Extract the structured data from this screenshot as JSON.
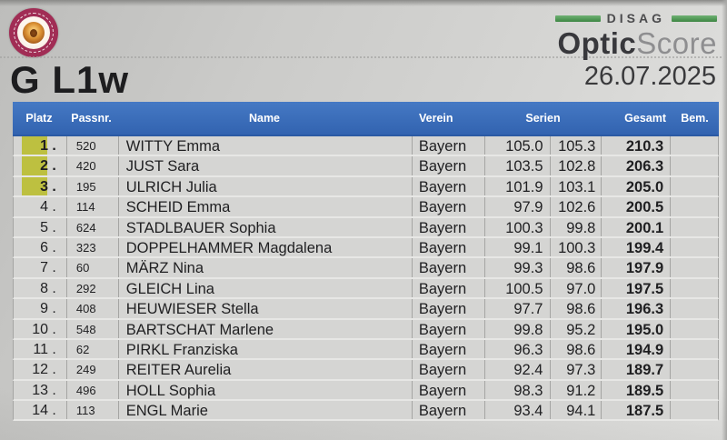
{
  "page": {
    "title": "G L1w",
    "date": "26.07.2025",
    "brand": {
      "top_word": "DISAG",
      "name_bold": "Optic",
      "name_light": "Score"
    },
    "logo": "bssb-lion-badge"
  },
  "colors": {
    "header_blue": "#3a6fbe",
    "rank_highlight": "#bdc040",
    "brand_green": "#3d8643",
    "badge_ring": "#a12d55",
    "row_bg": "#d5d5d3"
  },
  "table": {
    "headers": {
      "platz": "Platz",
      "passnr": "Passnr.",
      "name": "Name",
      "verein": "Verein",
      "serien": "Serien",
      "gesamt": "Gesamt",
      "bem": "Bem."
    },
    "rows": [
      {
        "platz": "1 .",
        "passnr": "520",
        "name": "WITTY Emma",
        "verein": "Bayern",
        "serie1": "105.0",
        "serie2": "105.3",
        "gesamt": "210.3",
        "bem": "",
        "highlight": true
      },
      {
        "platz": "2 .",
        "passnr": "420",
        "name": "JUST Sara",
        "verein": "Bayern",
        "serie1": "103.5",
        "serie2": "102.8",
        "gesamt": "206.3",
        "bem": "",
        "highlight": true
      },
      {
        "platz": "3 .",
        "passnr": "195",
        "name": "ULRICH Julia",
        "verein": "Bayern",
        "serie1": "101.9",
        "serie2": "103.1",
        "gesamt": "205.0",
        "bem": "",
        "highlight": true
      },
      {
        "platz": "4 .",
        "passnr": "114",
        "name": "SCHEID Emma",
        "verein": "Bayern",
        "serie1": "97.9",
        "serie2": "102.6",
        "gesamt": "200.5",
        "bem": "",
        "highlight": false
      },
      {
        "platz": "5 .",
        "passnr": "624",
        "name": "STADLBAUER Sophia",
        "verein": "Bayern",
        "serie1": "100.3",
        "serie2": "99.8",
        "gesamt": "200.1",
        "bem": "",
        "highlight": false
      },
      {
        "platz": "6 .",
        "passnr": "323",
        "name": "DOPPELHAMMER Magdalena",
        "verein": "Bayern",
        "serie1": "99.1",
        "serie2": "100.3",
        "gesamt": "199.4",
        "bem": "",
        "highlight": false
      },
      {
        "platz": "7 .",
        "passnr": "60",
        "name": "MÄRZ Nina",
        "verein": "Bayern",
        "serie1": "99.3",
        "serie2": "98.6",
        "gesamt": "197.9",
        "bem": "",
        "highlight": false
      },
      {
        "platz": "8 .",
        "passnr": "292",
        "name": "GLEICH Lina",
        "verein": "Bayern",
        "serie1": "100.5",
        "serie2": "97.0",
        "gesamt": "197.5",
        "bem": "",
        "highlight": false
      },
      {
        "platz": "9 .",
        "passnr": "408",
        "name": "HEUWIESER Stella",
        "verein": "Bayern",
        "serie1": "97.7",
        "serie2": "98.6",
        "gesamt": "196.3",
        "bem": "",
        "highlight": false
      },
      {
        "platz": "10 .",
        "passnr": "548",
        "name": "BARTSCHAT Marlene",
        "verein": "Bayern",
        "serie1": "99.8",
        "serie2": "95.2",
        "gesamt": "195.0",
        "bem": "",
        "highlight": false
      },
      {
        "platz": "11 .",
        "passnr": "62",
        "name": "PIRKL Franziska",
        "verein": "Bayern",
        "serie1": "96.3",
        "serie2": "98.6",
        "gesamt": "194.9",
        "bem": "",
        "highlight": false
      },
      {
        "platz": "12 .",
        "passnr": "249",
        "name": "REITER Aurelia",
        "verein": "Bayern",
        "serie1": "92.4",
        "serie2": "97.3",
        "gesamt": "189.7",
        "bem": "",
        "highlight": false
      },
      {
        "platz": "13 .",
        "passnr": "496",
        "name": "HOLL Sophia",
        "verein": "Bayern",
        "serie1": "98.3",
        "serie2": "91.2",
        "gesamt": "189.5",
        "bem": "",
        "highlight": false
      },
      {
        "platz": "14 .",
        "passnr": "113",
        "name": "ENGL Marie",
        "verein": "Bayern",
        "serie1": "93.4",
        "serie2": "94.1",
        "gesamt": "187.5",
        "bem": "",
        "highlight": false
      }
    ]
  }
}
